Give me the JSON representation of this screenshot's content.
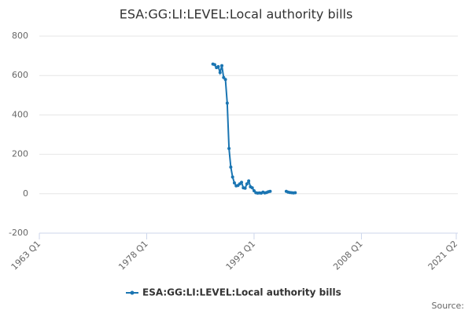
{
  "chart_data": {
    "type": "line",
    "title": "ESA:GG:LI:LEVEL:Local authority bills",
    "categories": [
      "1963 Q1",
      null,
      null,
      null,
      null,
      null,
      null,
      null,
      null,
      null,
      null,
      null,
      null,
      null,
      null,
      null,
      null,
      null,
      null,
      null,
      null,
      null,
      null,
      null,
      null,
      null,
      null,
      null,
      null,
      null,
      null,
      null,
      null,
      null,
      null,
      null,
      null,
      null,
      null,
      null,
      null,
      null,
      null,
      null,
      null,
      null,
      null,
      null,
      null,
      null,
      null,
      null,
      null,
      null,
      null,
      null,
      null,
      null,
      null,
      null,
      "1978 Q1",
      null,
      null,
      null,
      null,
      null,
      null,
      null,
      null,
      null,
      null,
      null,
      null,
      null,
      null,
      null,
      null,
      null,
      null,
      null,
      null,
      null,
      null,
      null,
      null,
      null,
      null,
      null,
      null,
      null,
      null,
      null,
      null,
      null,
      null,
      null,
      null,
      null,
      null,
      null,
      null,
      null,
      null,
      null,
      null,
      null,
      null,
      null,
      null,
      null,
      null,
      null,
      null,
      null,
      null,
      null,
      null,
      null,
      null,
      null,
      "1993 Q1",
      null,
      null,
      null,
      null,
      null,
      null,
      null,
      null,
      null,
      null,
      null,
      null,
      null,
      null,
      null,
      null,
      null,
      null,
      null,
      null,
      null,
      null,
      null,
      null,
      null,
      null,
      null,
      null,
      null,
      null,
      null,
      null,
      null,
      null,
      null,
      null,
      null,
      null,
      null,
      null,
      null,
      null,
      null,
      null,
      null,
      null,
      null,
      null,
      null,
      null,
      null,
      null,
      null,
      null,
      null,
      null,
      null,
      null,
      null,
      "2008 Q1",
      null,
      null,
      null,
      null,
      null,
      null,
      null,
      null,
      null,
      null,
      null,
      null,
      null,
      null,
      null,
      null,
      null,
      null,
      null,
      null,
      null,
      null,
      null,
      null,
      null,
      null,
      null,
      null,
      null,
      null,
      null,
      null,
      null,
      null,
      null,
      null,
      null,
      null,
      null,
      null,
      null,
      null,
      null,
      null,
      null,
      null,
      null,
      null,
      null,
      null,
      null,
      null,
      "2021 Q2"
    ],
    "series": [
      {
        "name": "ESA:GG:LI:LEVEL:Local authority bills",
        "color": "#1a75b2",
        "values": [
          null,
          null,
          null,
          null,
          null,
          null,
          null,
          null,
          null,
          null,
          null,
          null,
          null,
          null,
          null,
          null,
          null,
          null,
          null,
          null,
          null,
          null,
          null,
          null,
          null,
          null,
          null,
          null,
          null,
          null,
          null,
          null,
          null,
          null,
          null,
          null,
          null,
          null,
          null,
          null,
          null,
          null,
          null,
          null,
          null,
          null,
          null,
          null,
          null,
          null,
          null,
          null,
          null,
          null,
          null,
          null,
          null,
          null,
          null,
          null,
          null,
          null,
          null,
          null,
          null,
          null,
          null,
          null,
          null,
          null,
          null,
          null,
          null,
          null,
          null,
          null,
          null,
          null,
          null,
          null,
          null,
          null,
          null,
          null,
          null,
          null,
          null,
          null,
          null,
          null,
          null,
          null,
          null,
          null,
          null,
          null,
          null,
          658,
          655,
          640,
          645,
          615,
          650,
          590,
          580,
          460,
          230,
          135,
          85,
          55,
          40,
          42,
          50,
          58,
          30,
          28,
          50,
          65,
          35,
          30,
          15,
          5,
          3,
          4,
          3,
          8,
          4,
          6,
          10,
          12,
          null,
          null,
          null,
          null,
          null,
          null,
          null,
          null,
          12,
          8,
          6,
          5,
          4,
          5,
          null,
          null,
          null,
          null,
          null,
          null,
          null,
          null,
          null,
          null,
          null,
          null,
          null,
          null,
          null,
          null,
          null,
          null,
          null,
          null,
          null,
          null,
          null,
          null,
          null,
          null,
          null,
          null,
          null,
          null,
          null,
          null,
          null,
          null,
          null,
          null,
          null,
          null,
          null,
          null,
          null,
          null,
          null,
          null,
          null,
          null,
          null,
          null,
          null,
          null,
          null,
          null,
          null,
          null,
          null,
          null,
          null,
          null,
          null,
          null,
          null,
          null,
          null,
          null,
          null,
          null,
          null,
          null,
          null,
          null,
          null,
          null,
          null,
          null,
          null,
          null,
          null,
          null,
          null,
          null,
          null,
          null,
          null,
          null,
          null,
          null,
          null,
          null,
          null,
          null
        ]
      }
    ],
    "ylim": [
      -200,
      800
    ],
    "yticks": [
      -200,
      0,
      200,
      400,
      600,
      800
    ],
    "grid": true,
    "legend": "bottom",
    "source": "Source:"
  }
}
